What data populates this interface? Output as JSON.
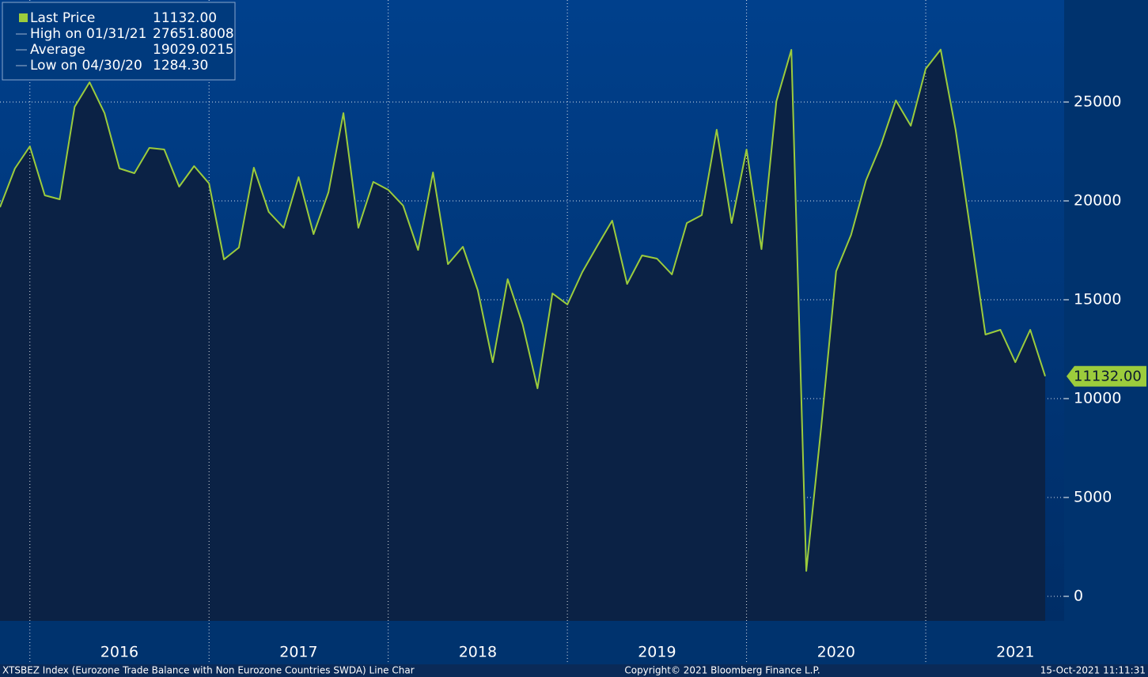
{
  "chart_data": {
    "type": "line",
    "legend": [
      {
        "label": "Last Price",
        "value": "11132.00"
      },
      {
        "label": "High on 01/31/21",
        "value": "27651.8008"
      },
      {
        "label": "Average",
        "value": "19029.0215"
      },
      {
        "label": "Low on 04/30/20",
        "value": "1284.30"
      }
    ],
    "x": [
      "2015-10",
      "2015-11",
      "2015-12",
      "2016-01",
      "2016-02",
      "2016-03",
      "2016-04",
      "2016-05",
      "2016-06",
      "2016-07",
      "2016-08",
      "2016-09",
      "2016-10",
      "2016-11",
      "2016-12",
      "2017-01",
      "2017-02",
      "2017-03",
      "2017-04",
      "2017-05",
      "2017-06",
      "2017-07",
      "2017-08",
      "2017-09",
      "2017-10",
      "2017-11",
      "2017-12",
      "2018-01",
      "2018-02",
      "2018-03",
      "2018-04",
      "2018-05",
      "2018-06",
      "2018-07",
      "2018-08",
      "2018-09",
      "2018-10",
      "2018-11",
      "2018-12",
      "2019-01",
      "2019-02",
      "2019-03",
      "2019-04",
      "2019-05",
      "2019-06",
      "2019-07",
      "2019-08",
      "2019-09",
      "2019-10",
      "2019-11",
      "2019-12",
      "2020-01",
      "2020-02",
      "2020-03",
      "2020-04",
      "2020-05",
      "2020-06",
      "2020-07",
      "2020-08",
      "2020-09",
      "2020-10",
      "2020-11",
      "2020-12",
      "2021-01",
      "2021-02",
      "2021-03",
      "2021-04",
      "2021-05",
      "2021-06",
      "2021-07",
      "2021-08"
    ],
    "series": [
      {
        "name": "Last Price",
        "color": "#9ccc3c",
        "values": [
          19680,
          21640,
          22760,
          20280,
          20080,
          24760,
          26000,
          24440,
          21640,
          21400,
          22680,
          22600,
          20720,
          21760,
          20880,
          17040,
          17640,
          21680,
          19440,
          18640,
          21200,
          18320,
          20440,
          24440,
          18640,
          20960,
          20560,
          19760,
          17520,
          21440,
          16800,
          17680,
          15480,
          11840,
          16040,
          13760,
          10520,
          15320,
          14760,
          16400,
          17720,
          19000,
          15800,
          17240,
          17080,
          16280,
          18880,
          19280,
          23600,
          18880,
          22600,
          17560,
          25040,
          27640,
          1284.3,
          8560,
          16440,
          18280,
          21040,
          22840,
          25080,
          23800,
          26680,
          27651.8008,
          23600,
          18480,
          13240,
          13480,
          11840,
          13480,
          11132
        ]
      }
    ],
    "xticks": [
      2016,
      2017,
      2018,
      2019,
      2020,
      2021
    ],
    "ylim": [
      -1240,
      30160
    ],
    "yticks": [
      0,
      5000,
      10000,
      15000,
      20000,
      25000
    ],
    "grid": true,
    "footer": {
      "left": "XTSBEZ Index (Eurozone Trade Balance with Non Eurozone Countries SWDA) Line Char",
      "center": "Copyright© 2021 Bloomberg Finance L.P.",
      "right": "15-Oct-2021 11:11:31"
    }
  }
}
